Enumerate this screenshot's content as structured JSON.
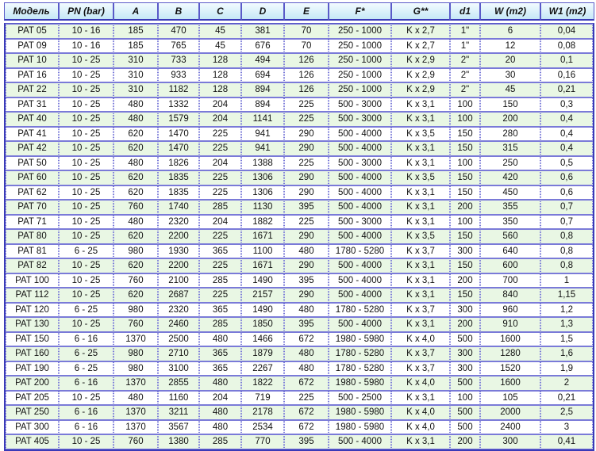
{
  "table": {
    "headers": [
      "Модель",
      "PN (bar)",
      "A",
      "B",
      "C",
      "D",
      "E",
      "F*",
      "G**",
      "d1",
      "W (m2)",
      "W1 (m2)"
    ],
    "rows": [
      [
        "PAT 05",
        "10 - 16",
        "185",
        "470",
        "45",
        "381",
        "70",
        "250 - 1000",
        "K x 2,7",
        "1\"",
        "6",
        "0,04"
      ],
      [
        "PAT 09",
        "10 - 16",
        "185",
        "765",
        "45",
        "676",
        "70",
        "250 - 1000",
        "K x 2,7",
        "1\"",
        "12",
        "0,08"
      ],
      [
        "PAT 10",
        "10 - 25",
        "310",
        "733",
        "128",
        "494",
        "126",
        "250 - 1000",
        "K x 2,9",
        "2\"",
        "20",
        "0,1"
      ],
      [
        "PAT 16",
        "10 - 25",
        "310",
        "933",
        "128",
        "694",
        "126",
        "250 - 1000",
        "K x 2,9",
        "2\"",
        "30",
        "0,16"
      ],
      [
        "PAT 22",
        "10 - 25",
        "310",
        "1182",
        "128",
        "894",
        "126",
        "250 - 1000",
        "K x 2,9",
        "2\"",
        "45",
        "0,21"
      ],
      [
        "PAT 31",
        "10 - 25",
        "480",
        "1332",
        "204",
        "894",
        "225",
        "500 - 3000",
        "K x 3,1",
        "100",
        "150",
        "0,3"
      ],
      [
        "PAT 40",
        "10 - 25",
        "480",
        "1579",
        "204",
        "1141",
        "225",
        "500 - 3000",
        "K x 3,1",
        "100",
        "200",
        "0,4"
      ],
      [
        "PAT 41",
        "10 - 25",
        "620",
        "1470",
        "225",
        "941",
        "290",
        "500 - 4000",
        "K x 3,5",
        "150",
        "280",
        "0,4"
      ],
      [
        "PAT 42",
        "10 - 25",
        "620",
        "1470",
        "225",
        "941",
        "290",
        "500 - 4000",
        "K x 3,1",
        "150",
        "315",
        "0,4"
      ],
      [
        "PAT 50",
        "10 - 25",
        "480",
        "1826",
        "204",
        "1388",
        "225",
        "500 - 3000",
        "K x 3,1",
        "100",
        "250",
        "0,5"
      ],
      [
        "PAT 60",
        "10 - 25",
        "620",
        "1835",
        "225",
        "1306",
        "290",
        "500 - 4000",
        "K x 3,5",
        "150",
        "420",
        "0,6"
      ],
      [
        "PAT 62",
        "10 - 25",
        "620",
        "1835",
        "225",
        "1306",
        "290",
        "500 - 4000",
        "K x 3,1",
        "150",
        "450",
        "0,6"
      ],
      [
        "PAT 70",
        "10 - 25",
        "760",
        "1740",
        "285",
        "1130",
        "395",
        "500 - 4000",
        "K x 3,1",
        "200",
        "355",
        "0,7"
      ],
      [
        "PAT 71",
        "10 - 25",
        "480",
        "2320",
        "204",
        "1882",
        "225",
        "500 - 3000",
        "K x 3,1",
        "100",
        "350",
        "0,7"
      ],
      [
        "PAT 80",
        "10 - 25",
        "620",
        "2200",
        "225",
        "1671",
        "290",
        "500 - 4000",
        "K x 3,5",
        "150",
        "560",
        "0,8"
      ],
      [
        "PAT 81",
        "6 - 25",
        "980",
        "1930",
        "365",
        "1100",
        "480",
        "1780 - 5280",
        "K x 3,7",
        "300",
        "640",
        "0,8"
      ],
      [
        "PAT 82",
        "10 - 25",
        "620",
        "2200",
        "225",
        "1671",
        "290",
        "500 - 4000",
        "K x 3,1",
        "150",
        "600",
        "0,8"
      ],
      [
        "PAT 100",
        "10 - 25",
        "760",
        "2100",
        "285",
        "1490",
        "395",
        "500 - 4000",
        "K x 3,1",
        "200",
        "700",
        "1"
      ],
      [
        "PAT 112",
        "10 - 25",
        "620",
        "2687",
        "225",
        "2157",
        "290",
        "500 - 4000",
        "K x 3,1",
        "150",
        "840",
        "1,15"
      ],
      [
        "PAT 120",
        "6 - 25",
        "980",
        "2320",
        "365",
        "1490",
        "480",
        "1780 - 5280",
        "K x 3,7",
        "300",
        "960",
        "1,2"
      ],
      [
        "PAT 130",
        "10 - 25",
        "760",
        "2460",
        "285",
        "1850",
        "395",
        "500 - 4000",
        "K x 3,1",
        "200",
        "910",
        "1,3"
      ],
      [
        "PAT 150",
        "6 - 16",
        "1370",
        "2500",
        "480",
        "1466",
        "672",
        "1980 - 5980",
        "K x 4,0",
        "500",
        "1600",
        "1,5"
      ],
      [
        "PAT 160",
        "6 - 25",
        "980",
        "2710",
        "365",
        "1879",
        "480",
        "1780 - 5280",
        "K x 3,7",
        "300",
        "1280",
        "1,6"
      ],
      [
        "PAT 190",
        "6 - 25",
        "980",
        "3100",
        "365",
        "2267",
        "480",
        "1780 - 5280",
        "K x 3,7",
        "300",
        "1520",
        "1,9"
      ],
      [
        "PAT 200",
        "6 - 16",
        "1370",
        "2855",
        "480",
        "1822",
        "672",
        "1980 - 5980",
        "K x 4,0",
        "500",
        "1600",
        "2"
      ],
      [
        "PAT 205",
        "10 - 25",
        "480",
        "1160",
        "204",
        "719",
        "225",
        "500 - 2500",
        "K x 3,1",
        "100",
        "105",
        "0,21"
      ],
      [
        "PAT 250",
        "6 - 16",
        "1370",
        "3211",
        "480",
        "2178",
        "672",
        "1980 - 5980",
        "K x 4,0",
        "500",
        "2000",
        "2,5"
      ],
      [
        "PAT 300",
        "6 - 16",
        "1370",
        "3567",
        "480",
        "2534",
        "672",
        "1980 - 5980",
        "K x 4,0",
        "500",
        "2400",
        "3"
      ],
      [
        "PAT 405",
        "10 - 25",
        "760",
        "1380",
        "285",
        "770",
        "395",
        "500 - 4000",
        "K x 3,1",
        "200",
        "300",
        "0,41"
      ]
    ]
  },
  "colors": {
    "border": "#6666cc",
    "row_alt": "#e9f7e4",
    "header_bottom": "#c6e8f6"
  }
}
